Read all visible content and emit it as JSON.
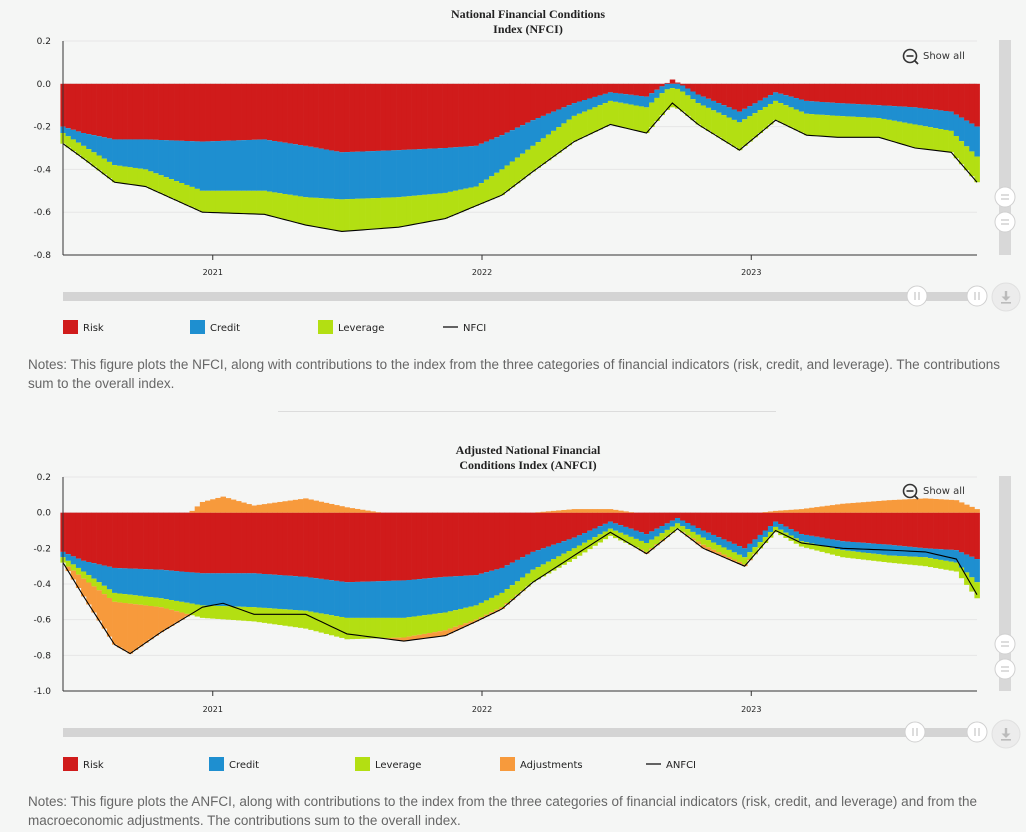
{
  "colors": {
    "risk": "#d01b1b",
    "credit": "#1e8fd0",
    "leverage": "#b3df12",
    "adjustments": "#f79a3c",
    "index_line": "#000000"
  },
  "icons": {
    "show_all": "zoom-out-icon",
    "download": "download-icon",
    "handle": "scroll-handle-icon"
  },
  "panels": [
    {
      "title_line1": "National Financial Conditions",
      "title_line2": "Index (NFCI)",
      "show_all": "Show all",
      "legend": [
        "Risk",
        "Credit",
        "Leverage",
        "NFCI"
      ],
      "notes": "Notes: This figure plots the NFCI, along with contributions to the index from the three categories of financial indicators (risk, credit, and leverage). The contributions sum to the overall index."
    },
    {
      "title_line1": "Adjusted National Financial",
      "title_line2": "Conditions Index (ANFCI)",
      "show_all": "Show all",
      "legend": [
        "Risk",
        "Credit",
        "Leverage",
        "Adjustments",
        "ANFCI"
      ],
      "notes": "Notes: This figure plots the ANFCI, along with contributions to the index from the three categories of financial indicators (risk, credit, and leverage) and from the macroeconomic adjustments. The contributions sum to the overall index."
    }
  ],
  "chart_data": [
    {
      "type": "bar",
      "stacked": true,
      "title": "National Financial Conditions Index (NFCI)",
      "ylim": [
        -0.8,
        0.2
      ],
      "yticks": [
        "0.2",
        "0.0",
        "-0.2",
        "-0.4",
        "-0.6",
        "-0.8"
      ],
      "xlim": [
        "2020-06-12",
        "2023-11-03"
      ],
      "xticks": [
        "2021",
        "2022",
        "2023"
      ],
      "xtick_dates": [
        "2021-01-01",
        "2022-01-01",
        "2023-01-01"
      ],
      "frequency": "weekly",
      "series_keyframes": [
        {
          "name": "Risk",
          "color": "#d01b1b",
          "points": [
            [
              "2020-06-12",
              -0.2
            ],
            [
              "2020-07-10",
              -0.23
            ],
            [
              "2020-08-21",
              -0.26
            ],
            [
              "2020-10-02",
              -0.26
            ],
            [
              "2020-12-18",
              -0.27
            ],
            [
              "2021-03-12",
              -0.26
            ],
            [
              "2021-05-07",
              -0.29
            ],
            [
              "2021-06-25",
              -0.32
            ],
            [
              "2021-09-10",
              -0.31
            ],
            [
              "2021-11-12",
              -0.3
            ],
            [
              "2021-12-24",
              -0.29
            ],
            [
              "2022-01-28",
              -0.24
            ],
            [
              "2022-03-11",
              -0.17
            ],
            [
              "2022-05-06",
              -0.09
            ],
            [
              "2022-06-24",
              -0.04
            ],
            [
              "2022-08-12",
              -0.06
            ],
            [
              "2022-09-16",
              0.02
            ],
            [
              "2022-10-21",
              -0.05
            ],
            [
              "2022-12-16",
              -0.13
            ],
            [
              "2023-02-03",
              -0.04
            ],
            [
              "2023-03-17",
              -0.08
            ],
            [
              "2023-04-28",
              -0.09
            ],
            [
              "2023-06-23",
              -0.1
            ],
            [
              "2023-08-11",
              -0.11
            ],
            [
              "2023-09-29",
              -0.13
            ],
            [
              "2023-11-03",
              -0.2
            ]
          ]
        },
        {
          "name": "Credit",
          "color": "#1e8fd0",
          "points": [
            [
              "2020-06-12",
              -0.03
            ],
            [
              "2020-07-10",
              -0.06
            ],
            [
              "2020-08-21",
              -0.12
            ],
            [
              "2020-10-02",
              -0.14
            ],
            [
              "2020-12-18",
              -0.23
            ],
            [
              "2021-03-12",
              -0.24
            ],
            [
              "2021-05-07",
              -0.24
            ],
            [
              "2021-06-25",
              -0.22
            ],
            [
              "2021-09-10",
              -0.22
            ],
            [
              "2021-11-12",
              -0.21
            ],
            [
              "2021-12-24",
              -0.19
            ],
            [
              "2022-01-28",
              -0.16
            ],
            [
              "2022-03-11",
              -0.12
            ],
            [
              "2022-05-06",
              -0.06
            ],
            [
              "2022-06-24",
              -0.04
            ],
            [
              "2022-08-12",
              -0.05
            ],
            [
              "2022-09-16",
              -0.02
            ],
            [
              "2022-10-21",
              -0.04
            ],
            [
              "2022-12-16",
              -0.05
            ],
            [
              "2023-02-03",
              -0.04
            ],
            [
              "2023-03-17",
              -0.06
            ],
            [
              "2023-04-28",
              -0.06
            ],
            [
              "2023-06-23",
              -0.06
            ],
            [
              "2023-08-11",
              -0.08
            ],
            [
              "2023-09-29",
              -0.09
            ],
            [
              "2023-11-03",
              -0.14
            ]
          ]
        },
        {
          "name": "Leverage",
          "color": "#b3df12",
          "points": [
            [
              "2020-06-12",
              -0.05
            ],
            [
              "2020-07-10",
              -0.06
            ],
            [
              "2020-08-21",
              -0.08
            ],
            [
              "2020-10-02",
              -0.08
            ],
            [
              "2020-12-18",
              -0.1
            ],
            [
              "2021-03-12",
              -0.11
            ],
            [
              "2021-05-07",
              -0.13
            ],
            [
              "2021-06-25",
              -0.15
            ],
            [
              "2021-09-10",
              -0.14
            ],
            [
              "2021-11-12",
              -0.12
            ],
            [
              "2021-12-24",
              -0.09
            ],
            [
              "2022-01-28",
              -0.12
            ],
            [
              "2022-03-11",
              -0.12
            ],
            [
              "2022-05-06",
              -0.12
            ],
            [
              "2022-06-24",
              -0.11
            ],
            [
              "2022-08-12",
              -0.12
            ],
            [
              "2022-09-16",
              -0.09
            ],
            [
              "2022-10-21",
              -0.1
            ],
            [
              "2022-12-16",
              -0.13
            ],
            [
              "2023-02-03",
              -0.09
            ],
            [
              "2023-03-17",
              -0.1
            ],
            [
              "2023-04-28",
              -0.1
            ],
            [
              "2023-06-23",
              -0.09
            ],
            [
              "2023-08-11",
              -0.11
            ],
            [
              "2023-09-29",
              -0.1
            ],
            [
              "2023-11-03",
              -0.12
            ]
          ]
        }
      ],
      "line": {
        "name": "NFCI",
        "color": "#000000",
        "equals": "sum_of_contributions"
      },
      "legend": [
        "Risk",
        "Credit",
        "Leverage",
        "NFCI"
      ],
      "grid": true
    },
    {
      "type": "bar",
      "stacked": true,
      "title": "Adjusted National Financial Conditions Index (ANFCI)",
      "ylim": [
        -1.0,
        0.2
      ],
      "yticks": [
        "0.2",
        "0.0",
        "-0.2",
        "-0.4",
        "-0.6",
        "-0.8",
        "-1.0"
      ],
      "xlim": [
        "2020-06-12",
        "2023-11-03"
      ],
      "xticks": [
        "2021",
        "2022",
        "2023"
      ],
      "xtick_dates": [
        "2021-01-01",
        "2022-01-01",
        "2023-01-01"
      ],
      "frequency": "weekly",
      "series_keyframes": [
        {
          "name": "Risk",
          "color": "#d01b1b",
          "points": [
            [
              "2020-06-12",
              -0.22
            ],
            [
              "2020-07-10",
              -0.27
            ],
            [
              "2020-08-21",
              -0.31
            ],
            [
              "2020-10-23",
              -0.32
            ],
            [
              "2020-12-18",
              -0.34
            ],
            [
              "2021-02-26",
              -0.34
            ],
            [
              "2021-05-07",
              -0.36
            ],
            [
              "2021-07-02",
              -0.39
            ],
            [
              "2021-09-17",
              -0.38
            ],
            [
              "2021-11-12",
              -0.36
            ],
            [
              "2021-12-24",
              -0.35
            ],
            [
              "2022-01-28",
              -0.31
            ],
            [
              "2022-03-11",
              -0.22
            ],
            [
              "2022-05-06",
              -0.14
            ],
            [
              "2022-06-24",
              -0.05
            ],
            [
              "2022-08-12",
              -0.12
            ],
            [
              "2022-09-23",
              -0.03
            ],
            [
              "2022-10-28",
              -0.1
            ],
            [
              "2022-12-23",
              -0.2
            ],
            [
              "2023-02-03",
              -0.05
            ],
            [
              "2023-03-10",
              -0.12
            ],
            [
              "2023-05-05",
              -0.16
            ],
            [
              "2023-07-07",
              -0.18
            ],
            [
              "2023-08-25",
              -0.2
            ],
            [
              "2023-10-06",
              -0.21
            ],
            [
              "2023-11-03",
              -0.26
            ]
          ]
        },
        {
          "name": "Credit",
          "color": "#1e8fd0",
          "points": [
            [
              "2020-06-12",
              -0.03
            ],
            [
              "2020-07-10",
              -0.06
            ],
            [
              "2020-08-21",
              -0.14
            ],
            [
              "2020-10-23",
              -0.16
            ],
            [
              "2020-12-18",
              -0.18
            ],
            [
              "2021-02-26",
              -0.19
            ],
            [
              "2021-05-07",
              -0.19
            ],
            [
              "2021-07-02",
              -0.2
            ],
            [
              "2021-09-17",
              -0.21
            ],
            [
              "2021-11-12",
              -0.2
            ],
            [
              "2021-12-24",
              -0.17
            ],
            [
              "2022-01-28",
              -0.14
            ],
            [
              "2022-03-11",
              -0.1
            ],
            [
              "2022-05-06",
              -0.06
            ],
            [
              "2022-06-24",
              -0.04
            ],
            [
              "2022-08-12",
              -0.05
            ],
            [
              "2022-09-23",
              -0.03
            ],
            [
              "2022-10-28",
              -0.04
            ],
            [
              "2022-12-23",
              -0.05
            ],
            [
              "2023-02-03",
              -0.03
            ],
            [
              "2023-03-10",
              -0.04
            ],
            [
              "2023-05-05",
              -0.05
            ],
            [
              "2023-07-07",
              -0.06
            ],
            [
              "2023-08-25",
              -0.05
            ],
            [
              "2023-10-06",
              -0.07
            ],
            [
              "2023-11-03",
              -0.13
            ]
          ]
        },
        {
          "name": "Leverage",
          "color": "#b3df12",
          "points": [
            [
              "2020-06-12",
              -0.03
            ],
            [
              "2020-07-10",
              -0.04
            ],
            [
              "2020-08-21",
              -0.05
            ],
            [
              "2020-10-23",
              -0.05
            ],
            [
              "2020-12-18",
              -0.07
            ],
            [
              "2021-02-26",
              -0.08
            ],
            [
              "2021-05-07",
              -0.1
            ],
            [
              "2021-07-02",
              -0.12
            ],
            [
              "2021-09-17",
              -0.11
            ],
            [
              "2021-11-12",
              -0.1
            ],
            [
              "2021-12-24",
              -0.08
            ],
            [
              "2022-01-28",
              -0.08
            ],
            [
              "2022-03-11",
              -0.07
            ],
            [
              "2022-05-06",
              -0.06
            ],
            [
              "2022-06-24",
              -0.04
            ],
            [
              "2022-08-12",
              -0.05
            ],
            [
              "2022-09-23",
              -0.03
            ],
            [
              "2022-10-28",
              -0.04
            ],
            [
              "2022-12-23",
              -0.04
            ],
            [
              "2023-02-03",
              -0.03
            ],
            [
              "2023-03-10",
              -0.03
            ],
            [
              "2023-05-05",
              -0.04
            ],
            [
              "2023-07-07",
              -0.04
            ],
            [
              "2023-08-25",
              -0.05
            ],
            [
              "2023-10-06",
              -0.05
            ],
            [
              "2023-11-03",
              -0.09
            ]
          ]
        },
        {
          "name": "Adjustments",
          "color": "#f79a3c",
          "points": [
            [
              "2020-06-12",
              0.0
            ],
            [
              "2020-07-10",
              -0.1
            ],
            [
              "2020-08-21",
              -0.24
            ],
            [
              "2020-09-11",
              -0.28
            ],
            [
              "2020-10-23",
              -0.14
            ],
            [
              "2020-12-18",
              0.06
            ],
            [
              "2021-01-15",
              0.09
            ],
            [
              "2021-02-26",
              0.04
            ],
            [
              "2021-05-07",
              0.08
            ],
            [
              "2021-07-02",
              0.03
            ],
            [
              "2021-09-17",
              -0.02
            ],
            [
              "2021-11-12",
              -0.03
            ],
            [
              "2021-12-24",
              -0.01
            ],
            [
              "2022-01-28",
              -0.01
            ],
            [
              "2022-03-11",
              0.0
            ],
            [
              "2022-05-06",
              0.02
            ],
            [
              "2022-06-24",
              0.02
            ],
            [
              "2022-08-12",
              -0.01
            ],
            [
              "2022-09-23",
              0.0
            ],
            [
              "2022-10-28",
              -0.02
            ],
            [
              "2022-12-23",
              -0.01
            ],
            [
              "2023-02-03",
              0.01
            ],
            [
              "2023-03-10",
              0.02
            ],
            [
              "2023-05-05",
              0.05
            ],
            [
              "2023-07-07",
              0.07
            ],
            [
              "2023-08-25",
              0.08
            ],
            [
              "2023-10-06",
              0.07
            ],
            [
              "2023-11-03",
              0.02
            ]
          ]
        }
      ],
      "line": {
        "name": "ANFCI",
        "color": "#000000",
        "equals": "sum_of_contributions"
      },
      "legend": [
        "Risk",
        "Credit",
        "Leverage",
        "Adjustments",
        "ANFCI"
      ],
      "grid": true
    }
  ]
}
